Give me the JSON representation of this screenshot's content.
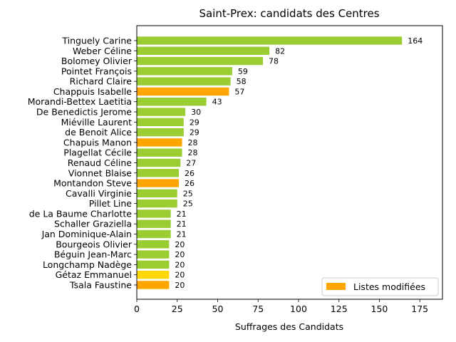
{
  "chart_data": {
    "type": "bar",
    "orientation": "horizontal",
    "title": "Saint-Prex: candidats des Centres",
    "xlabel": "Suffrages des Candidats",
    "ylabel": "",
    "xlim": [
      0,
      189
    ],
    "xticks": [
      0,
      25,
      50,
      75,
      100,
      125,
      150,
      175
    ],
    "grid": false,
    "colors": {
      "default": "#9acd32",
      "modified": "#ffa500",
      "highlight": "#ffd700"
    },
    "legend": {
      "placement": "lower-right",
      "entries": [
        {
          "label": "Listes modifiées",
          "color": "#ffa500"
        }
      ]
    },
    "bars": [
      {
        "name": "Tinguely Carine",
        "value": 164,
        "color": "#9acd32"
      },
      {
        "name": "Weber Céline",
        "value": 82,
        "color": "#9acd32"
      },
      {
        "name": "Bolomey Olivier",
        "value": 78,
        "color": "#9acd32"
      },
      {
        "name": "Pointet François",
        "value": 59,
        "color": "#9acd32"
      },
      {
        "name": "Richard Claire",
        "value": 58,
        "color": "#9acd32"
      },
      {
        "name": "Chappuis Isabelle",
        "value": 57,
        "color": "#ffa500"
      },
      {
        "name": "Morandi-Bettex Laetitia",
        "value": 43,
        "color": "#9acd32"
      },
      {
        "name": "De Benedictis Jerome",
        "value": 30,
        "color": "#9acd32"
      },
      {
        "name": "Miéville Laurent",
        "value": 29,
        "color": "#9acd32"
      },
      {
        "name": "de Benoit Alice",
        "value": 29,
        "color": "#9acd32"
      },
      {
        "name": "Chapuis Manon",
        "value": 28,
        "color": "#ffa500"
      },
      {
        "name": "Plagellat Cécile",
        "value": 28,
        "color": "#9acd32"
      },
      {
        "name": "Renaud Céline",
        "value": 27,
        "color": "#9acd32"
      },
      {
        "name": "Vionnet Blaise",
        "value": 26,
        "color": "#9acd32"
      },
      {
        "name": "Montandon Steve",
        "value": 26,
        "color": "#ffa500"
      },
      {
        "name": "Cavalli Virginie",
        "value": 25,
        "color": "#9acd32"
      },
      {
        "name": "Pillet Line",
        "value": 25,
        "color": "#9acd32"
      },
      {
        "name": "de La Baume Charlotte",
        "value": 21,
        "color": "#9acd32"
      },
      {
        "name": "Schaller Graziella",
        "value": 21,
        "color": "#9acd32"
      },
      {
        "name": "Jan Dominique-Alain",
        "value": 21,
        "color": "#9acd32"
      },
      {
        "name": "Bourgeois Olivier",
        "value": 20,
        "color": "#9acd32"
      },
      {
        "name": "Béguin Jean-Marc",
        "value": 20,
        "color": "#9acd32"
      },
      {
        "name": "Longchamp Nadège",
        "value": 20,
        "color": "#9acd32"
      },
      {
        "name": "Gétaz Emmanuel",
        "value": 20,
        "color": "#ffd700"
      },
      {
        "name": "Tsala Faustine",
        "value": 20,
        "color": "#ffa500"
      }
    ]
  }
}
